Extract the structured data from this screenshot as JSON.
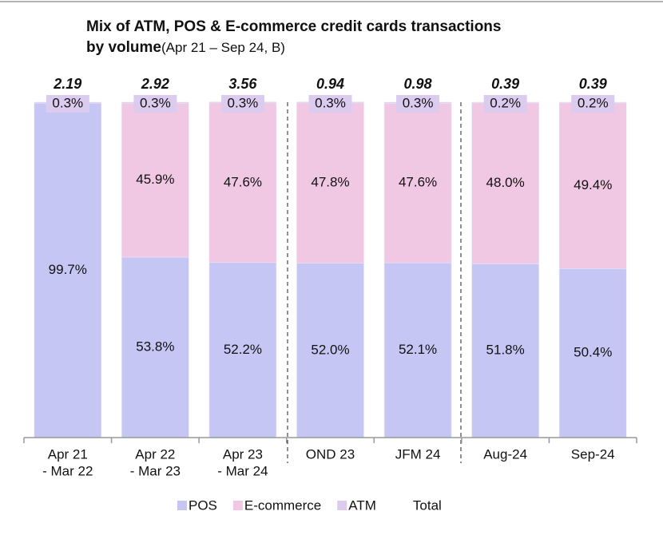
{
  "chart_data": {
    "type": "bar",
    "stacked": true,
    "title": [
      "Mix of ATM, POS & E-commerce credit cards transactions",
      "by volume"
    ],
    "subtitle": "(Apr 21 – Sep 24, B)",
    "categories": [
      [
        "Apr 21",
        " - Mar 22"
      ],
      [
        "Apr 22",
        " - Mar 23"
      ],
      [
        "Apr 23",
        " - Mar 24"
      ],
      [
        "OND 23"
      ],
      [
        "JFM 24"
      ],
      [
        "Aug-24"
      ],
      [
        "Sep-24"
      ]
    ],
    "ylim": [
      0,
      100
    ],
    "series": [
      {
        "name": "POS",
        "color": "#c6c6f5",
        "values": [
          99.7,
          53.8,
          52.2,
          52.0,
          52.1,
          51.8,
          50.4
        ],
        "value_labels": [
          "99.7%",
          "53.8%",
          "52.2%",
          "52.0%",
          "52.1%",
          "51.8%",
          "50.4%"
        ]
      },
      {
        "name": "E-commerce",
        "color": "#f1c8e3",
        "values": [
          null,
          45.9,
          47.6,
          47.8,
          47.6,
          48.0,
          49.4
        ],
        "value_labels": [
          null,
          "45.9%",
          "47.6%",
          "47.8%",
          "47.6%",
          "48.0%",
          "49.4%"
        ]
      },
      {
        "name": "ATM",
        "color": "#dacbef",
        "values": [
          0.3,
          0.3,
          0.3,
          0.3,
          0.3,
          0.2,
          0.2
        ],
        "value_labels": [
          "0.3%",
          "0.3%",
          "0.3%",
          "0.3%",
          "0.3%",
          "0.2%",
          "0.2%"
        ]
      }
    ],
    "totals": {
      "name": "Total",
      "values": [
        2.19,
        2.92,
        3.56,
        0.94,
        0.98,
        0.39,
        0.39
      ]
    }
  }
}
